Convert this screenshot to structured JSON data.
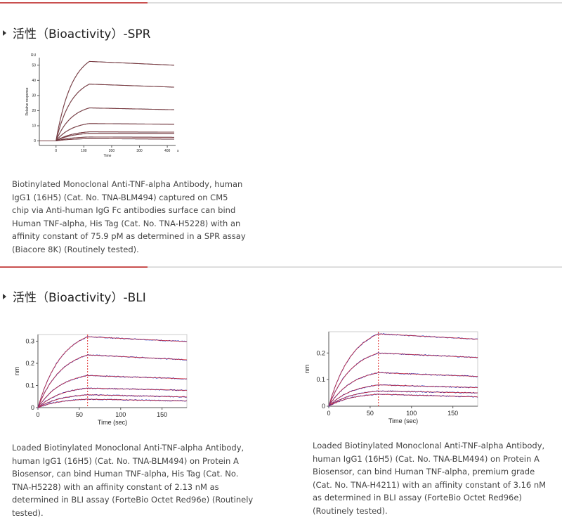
{
  "sections": [
    {
      "title": "活性（Bioactivity）-SPR",
      "figures": [
        {
          "caption": "Biotinylated Monoclonal Anti-TNF-alpha Antibody, human IgG1 (16H5) (Cat. No. TNA-BLM494) captured on CM5 chip via Anti-human IgG Fc antibodies surface can bind Human TNF-alpha, His Tag (Cat. No. TNA-H5228) with an affinity constant of 75.9 pM as determined in a SPR assay (Biacore 8K) (Routinely  tested)."
        }
      ]
    },
    {
      "title": "活性（Bioactivity）-BLI",
      "figures": [
        {
          "caption": "Loaded Biotinylated Monoclonal Anti-TNF-alpha Antibody, human IgG1 (16H5) (Cat. No. TNA-BLM494) on Protein A Biosensor, can bind Human TNF-alpha, His Tag (Cat. No. TNA-H5228) with an affinity constant of 2.13 nM as determined in BLI assay (ForteBio Octet Red96e) (Routinely tested)."
        },
        {
          "caption": "Loaded Biotinylated Monoclonal Anti-TNF-alpha Antibody, human IgG1 (16H5) (Cat. No. TNA-BLM494) on Protein A Biosensor, can bind Human TNF-alpha, premium grade (Cat. No. TNA-H4211) with an affinity constant of 3.16 nM as determined in BLI assay (ForteBio Octet Red96e) (Routinely tested)."
        }
      ]
    }
  ],
  "chart_data": [
    {
      "type": "line",
      "title": "",
      "xlabel": "Time",
      "xunit": "s",
      "ylabel": "Relative response",
      "yunit": "RU",
      "xlim": [
        -60,
        430
      ],
      "ylim": [
        -3,
        55
      ],
      "xticks": [
        "0",
        "100",
        "200",
        "300",
        "400"
      ],
      "yticks": [
        "0",
        "10",
        "20",
        "30",
        "40",
        "50"
      ],
      "association_end": 120,
      "series": [
        {
          "peak": 52.5,
          "end": 50.0
        },
        {
          "peak": 37.5,
          "end": 35.5
        },
        {
          "peak": 21.8,
          "end": 20.6
        },
        {
          "peak": 11.5,
          "end": 11.0
        },
        {
          "peak": 6.0,
          "end": 5.8
        },
        {
          "peak": 5.0,
          "end": 5.0
        },
        {
          "peak": 2.6,
          "end": 2.4
        },
        {
          "peak": 1.5,
          "end": 1.2
        }
      ],
      "colors": {
        "measured": "#2a2a3a",
        "fit": "#d9534f"
      }
    },
    {
      "type": "line",
      "xlabel": "Time (sec)",
      "ylabel": "nm",
      "xlim": [
        0,
        180
      ],
      "ylim": [
        0,
        0.33
      ],
      "xticks": [
        "0",
        "50",
        "100",
        "150"
      ],
      "yticks": [
        "0",
        "0.1",
        "0.2",
        "0.3"
      ],
      "association_end": 60,
      "series": [
        {
          "peak": 0.32,
          "end": 0.298
        },
        {
          "peak": 0.238,
          "end": 0.216
        },
        {
          "peak": 0.145,
          "end": 0.13
        },
        {
          "peak": 0.088,
          "end": 0.078
        },
        {
          "peak": 0.058,
          "end": 0.048
        },
        {
          "peak": 0.038,
          "end": 0.03
        }
      ],
      "colors": {
        "measured": "#2030c0",
        "fit": "#e03030"
      }
    },
    {
      "type": "line",
      "xlabel": "Time (sec)",
      "ylabel": "nm",
      "xlim": [
        0,
        180
      ],
      "ylim": [
        0,
        0.28
      ],
      "xticks": [
        "0",
        "50",
        "100",
        "150"
      ],
      "yticks": [
        "0",
        "0.1",
        "0.2"
      ],
      "association_end": 60,
      "series": [
        {
          "peak": 0.272,
          "end": 0.252
        },
        {
          "peak": 0.2,
          "end": 0.183
        },
        {
          "peak": 0.126,
          "end": 0.112
        },
        {
          "peak": 0.08,
          "end": 0.07
        },
        {
          "peak": 0.057,
          "end": 0.05
        },
        {
          "peak": 0.045,
          "end": 0.035
        }
      ],
      "colors": {
        "measured": "#2030c0",
        "fit": "#e03030"
      }
    }
  ]
}
